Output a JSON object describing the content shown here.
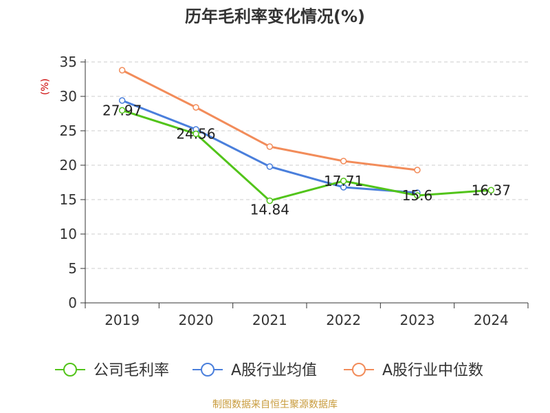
{
  "chart_data": {
    "type": "line",
    "title": "历年毛利率变化情况(%)",
    "ylabel": "(%)",
    "xlabel": "",
    "categories": [
      "2019",
      "2020",
      "2021",
      "2022",
      "2023",
      "2024"
    ],
    "ylim": [
      0,
      35
    ],
    "yticks": [
      0,
      5,
      10,
      15,
      20,
      25,
      30,
      35
    ],
    "grid": true,
    "legend_position": "bottom",
    "series": [
      {
        "name": "公司毛利率",
        "color": "#52c41a",
        "values": [
          27.97,
          24.56,
          14.84,
          17.71,
          15.6,
          16.37
        ],
        "labels": [
          "27.97",
          "24.56",
          "14.84",
          "17.71",
          "15.6",
          "16.37"
        ]
      },
      {
        "name": "A股行业均值",
        "color": "#4a7fdc",
        "values": [
          29.4,
          25.2,
          19.8,
          16.8,
          16.0,
          null
        ]
      },
      {
        "name": "A股行业中位数",
        "color": "#f28c5a",
        "values": [
          33.8,
          28.4,
          22.7,
          20.6,
          19.3,
          null
        ]
      }
    ]
  },
  "source_text": "制图数据来自恒生聚源数据库",
  "colors": {
    "title": "#333333",
    "axis": "#333333",
    "ylabel": "#cc0000",
    "grid": "#cccccc",
    "source": "#c89b3c"
  }
}
